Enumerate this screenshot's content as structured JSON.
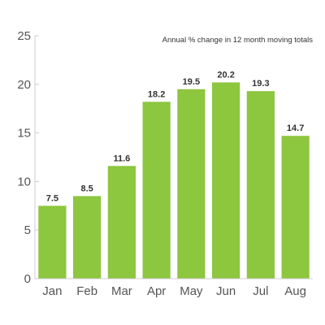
{
  "chart_data": {
    "type": "bar",
    "subtitle": "Annual % change in 12 month moving totals",
    "categories": [
      "Jan",
      "Feb",
      "Mar",
      "Apr",
      "May",
      "Jun",
      "Jul",
      "Aug"
    ],
    "values": [
      7.5,
      8.5,
      11.6,
      18.2,
      19.5,
      20.2,
      19.3,
      14.7
    ],
    "data_labels": [
      "7.5",
      "8.5",
      "11.6",
      "18.2",
      "19.5",
      "20.2",
      "19.3",
      "14.7"
    ],
    "ylim": [
      0,
      25
    ],
    "yticks": [
      0,
      5,
      10,
      15,
      20,
      25
    ],
    "grid": false,
    "bar_color": "#8dc63f"
  }
}
